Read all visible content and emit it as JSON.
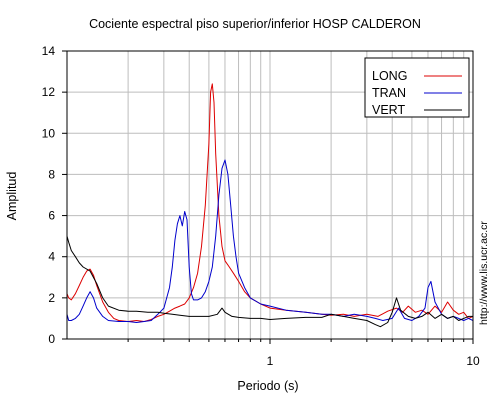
{
  "chart_data": {
    "type": "line",
    "title": "Cociente espectral piso superior/inferior  HOSP CALDERON",
    "xlabel": "Periodo (s)",
    "ylabel": "Amplitud",
    "xscale": "log",
    "xlim": [
      0.1,
      10
    ],
    "ylim": [
      0,
      14
    ],
    "xticks": [
      {
        "value": 1,
        "label": "1"
      },
      {
        "value": 10,
        "label": "10"
      }
    ],
    "yticks": [
      0,
      2,
      4,
      6,
      8,
      10,
      12,
      14
    ],
    "grid": true,
    "legend_position": "top-right",
    "side_label": "http://www.lis.ucr.ac.cr",
    "series": [
      {
        "name": "LONG",
        "color": "#dd0000",
        "points": [
          [
            0.1,
            2.2
          ],
          [
            0.102,
            2.0
          ],
          [
            0.105,
            1.9
          ],
          [
            0.11,
            2.2
          ],
          [
            0.115,
            2.6
          ],
          [
            0.12,
            3.0
          ],
          [
            0.125,
            3.3
          ],
          [
            0.13,
            3.4
          ],
          [
            0.135,
            3.1
          ],
          [
            0.14,
            2.6
          ],
          [
            0.15,
            1.8
          ],
          [
            0.16,
            1.3
          ],
          [
            0.17,
            1.0
          ],
          [
            0.18,
            0.9
          ],
          [
            0.2,
            0.85
          ],
          [
            0.22,
            0.9
          ],
          [
            0.24,
            0.85
          ],
          [
            0.26,
            0.95
          ],
          [
            0.28,
            1.1
          ],
          [
            0.3,
            1.2
          ],
          [
            0.32,
            1.35
          ],
          [
            0.34,
            1.5
          ],
          [
            0.36,
            1.6
          ],
          [
            0.38,
            1.7
          ],
          [
            0.4,
            2.0
          ],
          [
            0.42,
            2.5
          ],
          [
            0.44,
            3.2
          ],
          [
            0.46,
            4.5
          ],
          [
            0.48,
            6.5
          ],
          [
            0.5,
            9.5
          ],
          [
            0.51,
            12.0
          ],
          [
            0.52,
            12.4
          ],
          [
            0.53,
            11.5
          ],
          [
            0.54,
            9.0
          ],
          [
            0.56,
            6.0
          ],
          [
            0.58,
            4.5
          ],
          [
            0.6,
            3.8
          ],
          [
            0.63,
            3.5
          ],
          [
            0.66,
            3.2
          ],
          [
            0.7,
            2.8
          ],
          [
            0.75,
            2.3
          ],
          [
            0.8,
            2.0
          ],
          [
            0.9,
            1.7
          ],
          [
            1.0,
            1.5
          ],
          [
            1.2,
            1.4
          ],
          [
            1.5,
            1.3
          ],
          [
            1.8,
            1.2
          ],
          [
            2.0,
            1.15
          ],
          [
            2.3,
            1.2
          ],
          [
            2.6,
            1.1
          ],
          [
            3.0,
            1.2
          ],
          [
            3.4,
            1.1
          ],
          [
            3.8,
            1.35
          ],
          [
            4.2,
            1.5
          ],
          [
            4.5,
            1.3
          ],
          [
            4.8,
            1.6
          ],
          [
            5.2,
            1.3
          ],
          [
            5.6,
            1.4
          ],
          [
            6.0,
            1.2
          ],
          [
            6.5,
            1.6
          ],
          [
            7.0,
            1.3
          ],
          [
            7.5,
            1.8
          ],
          [
            8.0,
            1.4
          ],
          [
            8.5,
            1.2
          ],
          [
            9.0,
            1.3
          ],
          [
            9.5,
            1.0
          ],
          [
            10.0,
            1.1
          ]
        ]
      },
      {
        "name": "TRAN",
        "color": "#0000cc",
        "points": [
          [
            0.1,
            1.2
          ],
          [
            0.102,
            0.9
          ],
          [
            0.105,
            0.9
          ],
          [
            0.11,
            1.0
          ],
          [
            0.115,
            1.2
          ],
          [
            0.12,
            1.6
          ],
          [
            0.125,
            2.0
          ],
          [
            0.13,
            2.3
          ],
          [
            0.135,
            2.0
          ],
          [
            0.14,
            1.5
          ],
          [
            0.15,
            1.1
          ],
          [
            0.16,
            0.9
          ],
          [
            0.18,
            0.85
          ],
          [
            0.2,
            0.85
          ],
          [
            0.22,
            0.8
          ],
          [
            0.24,
            0.85
          ],
          [
            0.26,
            0.9
          ],
          [
            0.28,
            1.2
          ],
          [
            0.3,
            1.5
          ],
          [
            0.31,
            2.0
          ],
          [
            0.32,
            2.5
          ],
          [
            0.33,
            3.5
          ],
          [
            0.34,
            4.8
          ],
          [
            0.35,
            5.6
          ],
          [
            0.36,
            6.0
          ],
          [
            0.37,
            5.5
          ],
          [
            0.38,
            6.2
          ],
          [
            0.39,
            5.8
          ],
          [
            0.4,
            3.5
          ],
          [
            0.41,
            2.2
          ],
          [
            0.42,
            1.9
          ],
          [
            0.44,
            1.9
          ],
          [
            0.46,
            2.0
          ],
          [
            0.48,
            2.3
          ],
          [
            0.5,
            2.8
          ],
          [
            0.52,
            3.5
          ],
          [
            0.54,
            5.0
          ],
          [
            0.56,
            7.0
          ],
          [
            0.58,
            8.3
          ],
          [
            0.6,
            8.7
          ],
          [
            0.62,
            8.0
          ],
          [
            0.64,
            6.5
          ],
          [
            0.66,
            5.0
          ],
          [
            0.68,
            4.0
          ],
          [
            0.7,
            3.2
          ],
          [
            0.75,
            2.5
          ],
          [
            0.8,
            2.0
          ],
          [
            0.9,
            1.7
          ],
          [
            1.0,
            1.6
          ],
          [
            1.2,
            1.4
          ],
          [
            1.5,
            1.3
          ],
          [
            1.8,
            1.2
          ],
          [
            2.0,
            1.2
          ],
          [
            2.3,
            1.1
          ],
          [
            2.6,
            1.2
          ],
          [
            3.0,
            1.1
          ],
          [
            3.3,
            1.0
          ],
          [
            3.6,
            0.9
          ],
          [
            4.0,
            1.0
          ],
          [
            4.3,
            1.5
          ],
          [
            4.6,
            1.0
          ],
          [
            5.0,
            0.9
          ],
          [
            5.4,
            1.1
          ],
          [
            5.8,
            1.5
          ],
          [
            6.0,
            2.5
          ],
          [
            6.2,
            2.8
          ],
          [
            6.5,
            1.8
          ],
          [
            7.0,
            1.2
          ],
          [
            7.5,
            1.0
          ],
          [
            8.0,
            1.1
          ],
          [
            8.5,
            1.0
          ],
          [
            9.0,
            0.9
          ],
          [
            9.5,
            1.0
          ],
          [
            10.0,
            0.9
          ]
        ]
      },
      {
        "name": "VERT",
        "color": "#000000",
        "points": [
          [
            0.1,
            5.0
          ],
          [
            0.102,
            4.7
          ],
          [
            0.105,
            4.3
          ],
          [
            0.11,
            4.0
          ],
          [
            0.115,
            3.7
          ],
          [
            0.12,
            3.5
          ],
          [
            0.13,
            3.3
          ],
          [
            0.14,
            2.7
          ],
          [
            0.15,
            2.0
          ],
          [
            0.16,
            1.6
          ],
          [
            0.18,
            1.4
          ],
          [
            0.2,
            1.35
          ],
          [
            0.22,
            1.35
          ],
          [
            0.25,
            1.3
          ],
          [
            0.28,
            1.3
          ],
          [
            0.3,
            1.25
          ],
          [
            0.33,
            1.2
          ],
          [
            0.36,
            1.15
          ],
          [
            0.4,
            1.1
          ],
          [
            0.45,
            1.1
          ],
          [
            0.5,
            1.1
          ],
          [
            0.55,
            1.2
          ],
          [
            0.58,
            1.5
          ],
          [
            0.6,
            1.3
          ],
          [
            0.65,
            1.1
          ],
          [
            0.7,
            1.05
          ],
          [
            0.8,
            1.0
          ],
          [
            0.9,
            1.0
          ],
          [
            1.0,
            0.95
          ],
          [
            1.2,
            1.0
          ],
          [
            1.5,
            1.05
          ],
          [
            1.8,
            1.05
          ],
          [
            2.0,
            1.2
          ],
          [
            2.3,
            1.1
          ],
          [
            2.6,
            1.0
          ],
          [
            3.0,
            0.9
          ],
          [
            3.3,
            0.7
          ],
          [
            3.5,
            0.6
          ],
          [
            3.8,
            0.8
          ],
          [
            4.0,
            1.3
          ],
          [
            4.2,
            2.0
          ],
          [
            4.4,
            1.4
          ],
          [
            4.8,
            1.1
          ],
          [
            5.2,
            1.0
          ],
          [
            5.6,
            1.1
          ],
          [
            6.0,
            1.3
          ],
          [
            6.5,
            1.0
          ],
          [
            7.0,
            1.2
          ],
          [
            7.5,
            1.0
          ],
          [
            8.0,
            1.1
          ],
          [
            8.5,
            0.9
          ],
          [
            9.0,
            1.0
          ],
          [
            9.5,
            1.1
          ],
          [
            10.0,
            1.1
          ]
        ]
      }
    ]
  }
}
